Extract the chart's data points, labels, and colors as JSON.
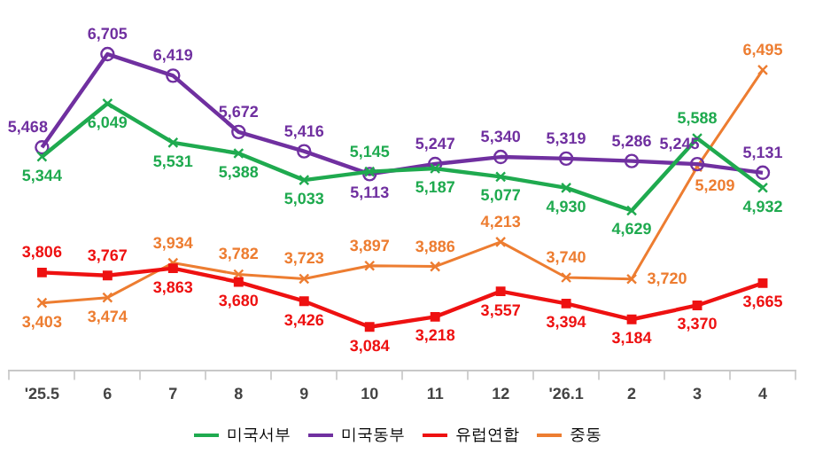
{
  "chart_data": {
    "type": "line",
    "categories": [
      "'25.5",
      "6",
      "7",
      "8",
      "9",
      "10",
      "11",
      "12",
      "'26.1",
      "2",
      "3",
      "4"
    ],
    "tick_labels": "x",
    "grid": false,
    "legend": "bottom",
    "line_style": "solid",
    "series": [
      {
        "name": "미국서부",
        "color": "#1faa4f",
        "marker": "cross",
        "values": [
          5344,
          6049,
          5531,
          5388,
          5033,
          5145,
          5187,
          5077,
          4930,
          4629,
          5588,
          4932
        ],
        "value_labels": [
          "5,344",
          "6,049",
          "5,531",
          "5,388",
          "5,033",
          "5,145",
          "5,187",
          "5,077",
          "4,930",
          "4,629",
          "5,588",
          "4,932"
        ]
      },
      {
        "name": "미국동부",
        "color": "#7030a0",
        "marker": "circle",
        "values": [
          5468,
          6705,
          6419,
          5672,
          5416,
          5113,
          5247,
          5340,
          5319,
          5286,
          5245,
          5131
        ],
        "value_labels": [
          "5,468",
          "6,705",
          "6,419",
          "5,672",
          "5,416",
          "5,113",
          "5,247",
          "5,340",
          "5,319",
          "5,286",
          "5,245",
          "5,131"
        ]
      },
      {
        "name": "유럽연합",
        "color": "#ee1111",
        "marker": "square",
        "values": [
          3806,
          3767,
          3863,
          3680,
          3426,
          3084,
          3218,
          3557,
          3394,
          3184,
          3370,
          3665
        ],
        "value_labels": [
          "3,806",
          "3,767",
          "3,863",
          "3,680",
          "3,426",
          "3,084",
          "3,218",
          "3,557",
          "3,394",
          "3,184",
          "3,370",
          "3,665"
        ]
      },
      {
        "name": "중동",
        "color": "#ed7d31",
        "marker": "cross",
        "values": [
          3403,
          3474,
          3934,
          3782,
          3723,
          3897,
          3886,
          4213,
          3740,
          3720,
          5209,
          6495
        ],
        "value_labels": [
          "3,403",
          "3,474",
          "3,934",
          "3,782",
          "3,723",
          "3,897",
          "3,886",
          "4,213",
          "3,740",
          "3,720",
          "5,209",
          "6,495"
        ]
      }
    ]
  }
}
